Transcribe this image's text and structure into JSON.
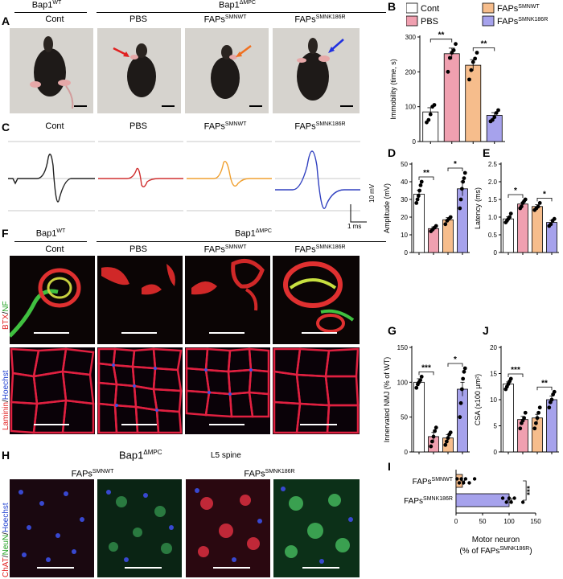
{
  "panels": {
    "A": "A",
    "B": "B",
    "C": "C",
    "D": "D",
    "E": "E",
    "F": "F",
    "G": "G",
    "H": "H",
    "I": "I",
    "J": "J"
  },
  "genotype": {
    "wt": "Bap1",
    "wt_sup": "WT",
    "mut": "Bap1",
    "mut_sup": "ΔMPC"
  },
  "groups": {
    "cont": "Cont",
    "pbs": "PBS",
    "faps_wt": "FAPs",
    "faps_wt_sup": "SMNWT",
    "faps_mut": "FAPs",
    "faps_mut_sup": "SMNK186R"
  },
  "colors": {
    "cont": "#ffffff",
    "pbs": "#f0a0b0",
    "faps_wt": "#f6bd8c",
    "faps_mut": "#a6a2ec",
    "arrow_red": "#e02020",
    "arrow_orange": "#f07020",
    "arrow_blue": "#2030e0"
  },
  "scale_c": {
    "y": "10 mV",
    "x": "1 ms"
  },
  "panel_f": {
    "stain_top_1": "BTX",
    "stain_top_2": "NF",
    "stain_bot_1": "Laminin",
    "stain_bot_2": "Hoechst"
  },
  "panel_h": {
    "region": "L5 spine",
    "stain_1": "ChAT",
    "stain_2": "NeuN",
    "stain_3": "Hoechst"
  },
  "chart_data": [
    {
      "id": "B",
      "type": "bar",
      "ylabel": "Immobility (time, s)",
      "categories": [
        "Cont",
        "PBS",
        "FAPsSMNWT",
        "FAPsSMNK186R"
      ],
      "values": [
        85,
        252,
        219,
        75
      ],
      "errors": [
        12,
        16,
        16,
        8
      ],
      "ylim": [
        0,
        300
      ],
      "yticks": [
        0,
        100,
        200,
        300
      ],
      "sig": [
        "**",
        "**"
      ],
      "points": [
        [
          55,
          62,
          78,
          100,
          105
        ],
        [
          200,
          240,
          255,
          262,
          280
        ],
        [
          178,
          205,
          228,
          238,
          255
        ],
        [
          58,
          62,
          70,
          82,
          90
        ]
      ],
      "legend": [
        "Cont",
        "PBS",
        "FAPsSMNWT",
        "FAPsSMNK186R"
      ]
    },
    {
      "id": "D",
      "type": "bar",
      "ylabel": "Amplitude (mV)",
      "categories": [
        "Cont",
        "PBS",
        "FAPsSMNWT",
        "FAPsSMNK186R"
      ],
      "values": [
        33,
        13.5,
        18.5,
        36
      ],
      "errors": [
        2.2,
        1,
        1.2,
        4
      ],
      "ylim": [
        0,
        50
      ],
      "yticks": [
        0,
        10,
        20,
        30,
        40,
        50
      ],
      "sig": [
        "**",
        "*"
      ],
      "points": [
        [
          28,
          30,
          32,
          35,
          38,
          40
        ],
        [
          12,
          13,
          14,
          15
        ],
        [
          16,
          18,
          19,
          20
        ],
        [
          25,
          30,
          36,
          40,
          42,
          45
        ]
      ]
    },
    {
      "id": "E",
      "type": "bar",
      "ylabel": "Latency (ms)",
      "categories": [
        "Cont",
        "PBS",
        "FAPsSMNWT",
        "FAPsSMNK186R"
      ],
      "values": [
        0.95,
        1.37,
        1.3,
        0.85
      ],
      "errors": [
        0.06,
        0.05,
        0.05,
        0.06
      ],
      "ylim": [
        0,
        2.5
      ],
      "yticks": [
        0,
        0.5,
        1.0,
        1.5,
        2.0,
        2.5
      ],
      "sig": [
        "*",
        "*"
      ],
      "points": [
        [
          0.85,
          0.9,
          0.95,
          1.0,
          1.1
        ],
        [
          1.25,
          1.3,
          1.4,
          1.45,
          1.5
        ],
        [
          1.2,
          1.25,
          1.3,
          1.4
        ],
        [
          0.75,
          0.8,
          0.9,
          0.95
        ]
      ]
    },
    {
      "id": "G",
      "type": "bar",
      "ylabel": "Innervated NMJ (% of WT)",
      "categories": [
        "Cont",
        "PBS",
        "FAPsSMNWT",
        "FAPsSMNK186R"
      ],
      "values": [
        100,
        22,
        20,
        90
      ],
      "errors": [
        5,
        6,
        5,
        10
      ],
      "ylim": [
        0,
        150
      ],
      "yticks": [
        0,
        50,
        100,
        150
      ],
      "sig": [
        "***",
        "*"
      ],
      "points": [
        [
          92,
          97,
          100,
          103,
          108
        ],
        [
          8,
          15,
          22,
          30,
          35
        ],
        [
          10,
          15,
          20,
          25,
          28
        ],
        [
          50,
          70,
          90,
          105,
          115,
          120
        ]
      ]
    },
    {
      "id": "J",
      "type": "bar",
      "ylabel": "CSA (x100 μm²)",
      "categories": [
        "Cont",
        "PBS",
        "FAPsSMNWT",
        "FAPsSMNK186R"
      ],
      "values": [
        13,
        6.2,
        6.5,
        10
      ],
      "errors": [
        0.4,
        0.6,
        0.7,
        0.7
      ],
      "ylim": [
        0,
        20
      ],
      "yticks": [
        0,
        5,
        10,
        15,
        20
      ],
      "sig": [
        "***",
        "**"
      ],
      "points": [
        [
          12,
          12.5,
          13,
          13.5,
          14
        ],
        [
          4.5,
          5.5,
          6,
          6.5,
          7.5
        ],
        [
          4.5,
          5.5,
          6.5,
          7.5,
          8.5
        ],
        [
          8.5,
          9.5,
          10,
          11,
          11.5
        ]
      ]
    },
    {
      "id": "I",
      "type": "hbar",
      "xlabel": "Motor neuron (% of FAPsSMNK186R)",
      "categories": [
        "FAPsSMNWT",
        "FAPsSMNK186R"
      ],
      "values": [
        12,
        100
      ],
      "errors": [
        4,
        5
      ],
      "xlim": [
        0,
        150
      ],
      "xticks": [
        0,
        50,
        100,
        150
      ],
      "sig": [
        "***"
      ],
      "points": [
        [
          2,
          6,
          10,
          14,
          18,
          25,
          35
        ],
        [
          88,
          95,
          100,
          104,
          110,
          126
        ]
      ]
    }
  ]
}
